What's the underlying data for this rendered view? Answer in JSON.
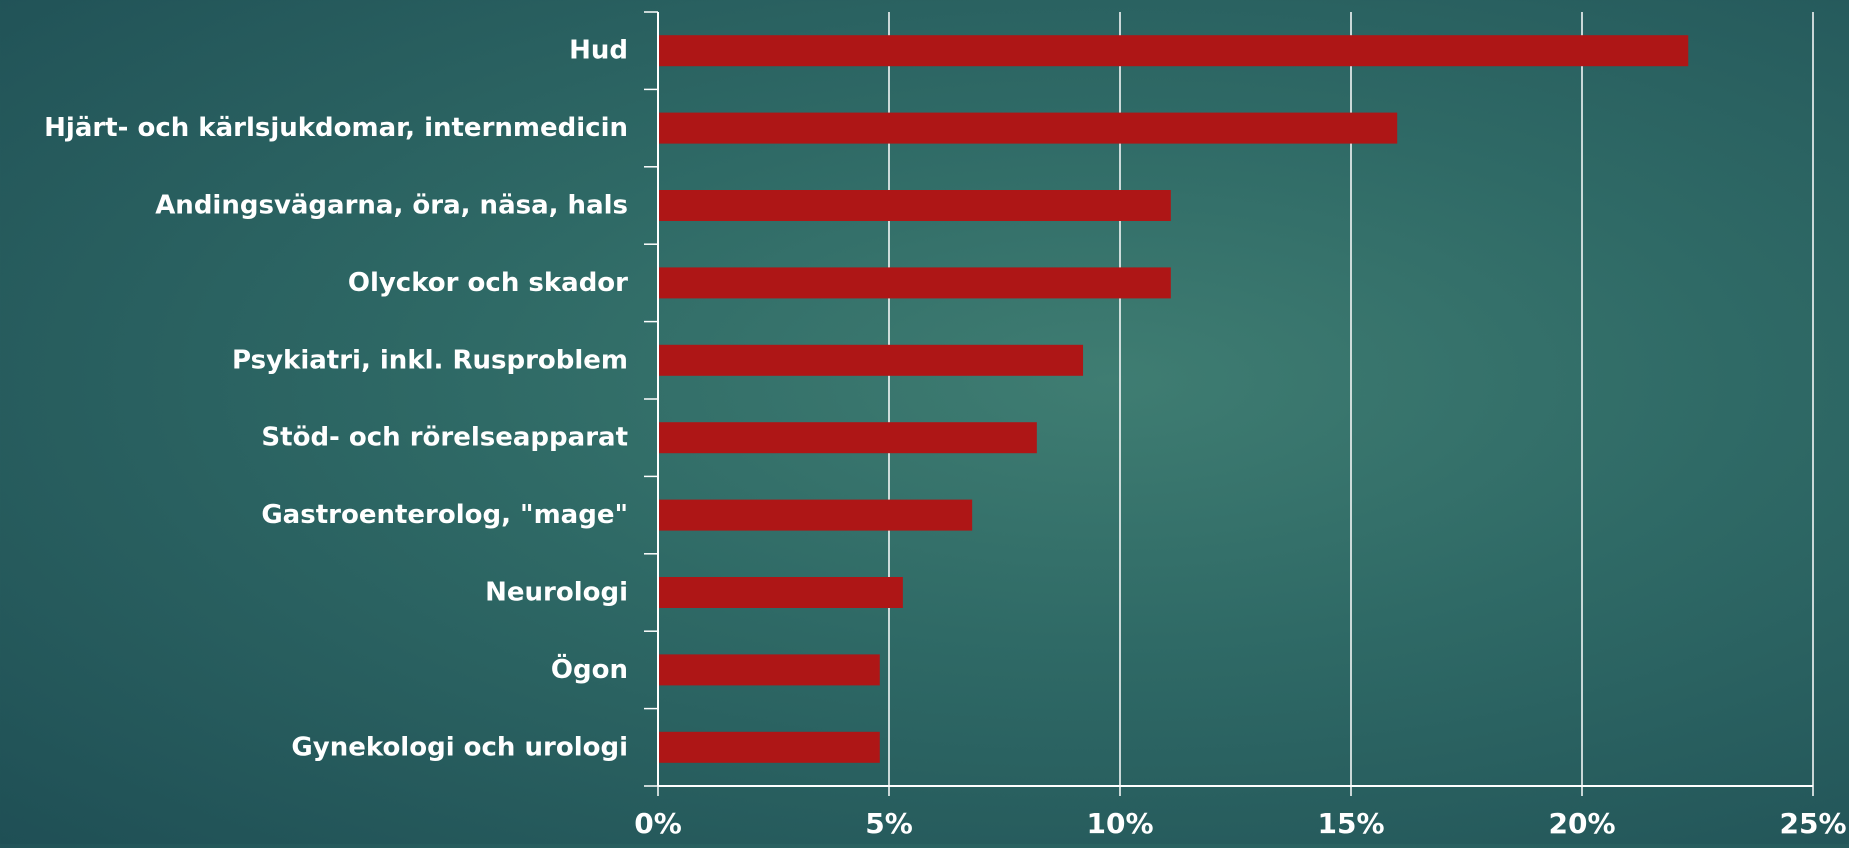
{
  "colors": {
    "bar": "#ae1616",
    "grid": "#ffffff",
    "text": "#ffffff",
    "background": "#2f6a66"
  },
  "chart_data": {
    "type": "bar",
    "orientation": "horizontal",
    "title": "",
    "xlabel": "",
    "ylabel": "",
    "categories": [
      "Hud",
      "Hjärt- och kärlsjukdomar, internmedicin",
      "Andingsvägarna, öra, näsa, hals",
      "Olyckor och skador",
      "Psykiatri, inkl. Rusproblem",
      "Stöd- och rörelseapparat",
      "Gastroenterolog, \"mage\"",
      "Neurologi",
      "Ögon",
      "Gynekologi och urologi"
    ],
    "values": [
      22.3,
      16.0,
      11.1,
      11.1,
      9.2,
      8.2,
      6.8,
      5.3,
      4.8,
      4.8
    ],
    "unit": "%",
    "xlim": [
      0,
      25
    ],
    "xticks": [
      0,
      5,
      10,
      15,
      20,
      25
    ],
    "xtick_labels": [
      "0%",
      "5%",
      "10%",
      "15%",
      "20%",
      "25%"
    ],
    "grid": true,
    "legend": "none"
  }
}
